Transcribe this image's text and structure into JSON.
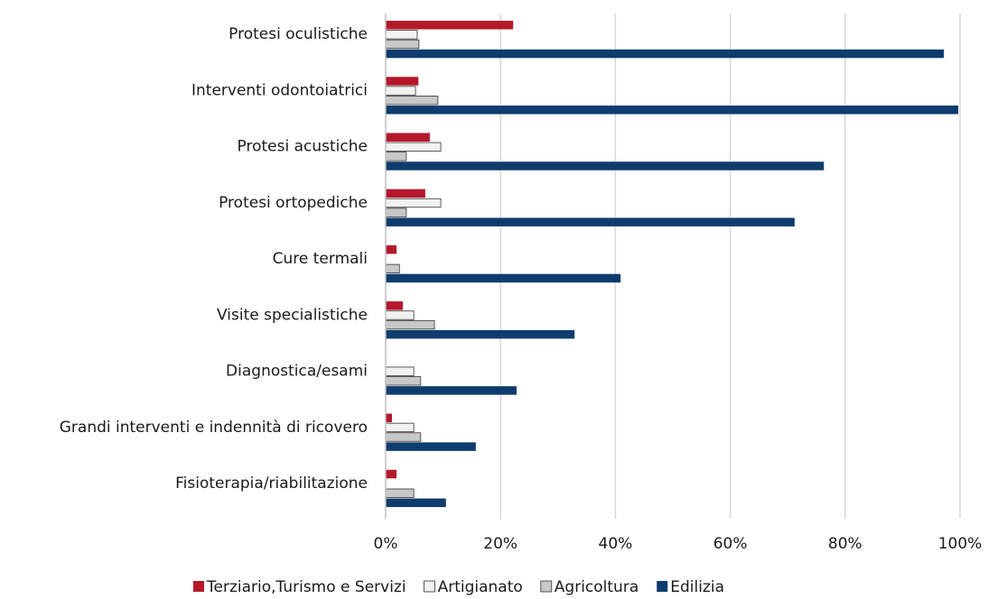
{
  "chart_data": {
    "type": "bar",
    "orientation": "horizontal",
    "categories": [
      "Protesi oculistiche",
      "Interventi odontoiatrici",
      "Protesi acustiche",
      "Protesi ortopediche",
      "Cure termali",
      "Visite specialistiche",
      "Diagnostica/esami",
      "Grandi interventi e indennità di ricovero",
      "Fisioterapia/riabilitazione"
    ],
    "series": [
      {
        "name": "Terziario,Turismo e Servizi",
        "color": "#b5182b",
        "values": [
          22.2,
          5.7,
          7.7,
          6.9,
          1.9,
          3,
          0,
          1.1,
          1.9
        ]
      },
      {
        "name": "Artigianato",
        "color": "#f2f2f2",
        "values": [
          5.5,
          5.2,
          9.6,
          9.6,
          0,
          4.9,
          4.9,
          4.9,
          0
        ]
      },
      {
        "name": "Agricoltura",
        "color": "#c8c8c8",
        "values": [
          5.8,
          9.1,
          3.6,
          3.6,
          2.4,
          8.5,
          6.1,
          6.1,
          4.9
        ]
      },
      {
        "name": "Edilizia",
        "color": "#0e3c6e",
        "values": [
          97.2,
          99.7,
          76.3,
          71.2,
          40.9,
          32.9,
          22.8,
          15.7,
          10.5
        ]
      }
    ],
    "xlim": [
      0,
      100
    ],
    "xticks": [
      {
        "value": 0,
        "label": "0%"
      },
      {
        "value": 20,
        "label": "20%"
      },
      {
        "value": 40,
        "label": "40%"
      },
      {
        "value": 60,
        "label": "60%"
      },
      {
        "value": 80,
        "label": "80%"
      },
      {
        "value": 100,
        "label": "100%"
      }
    ],
    "grid": true,
    "legend": "bottom"
  }
}
